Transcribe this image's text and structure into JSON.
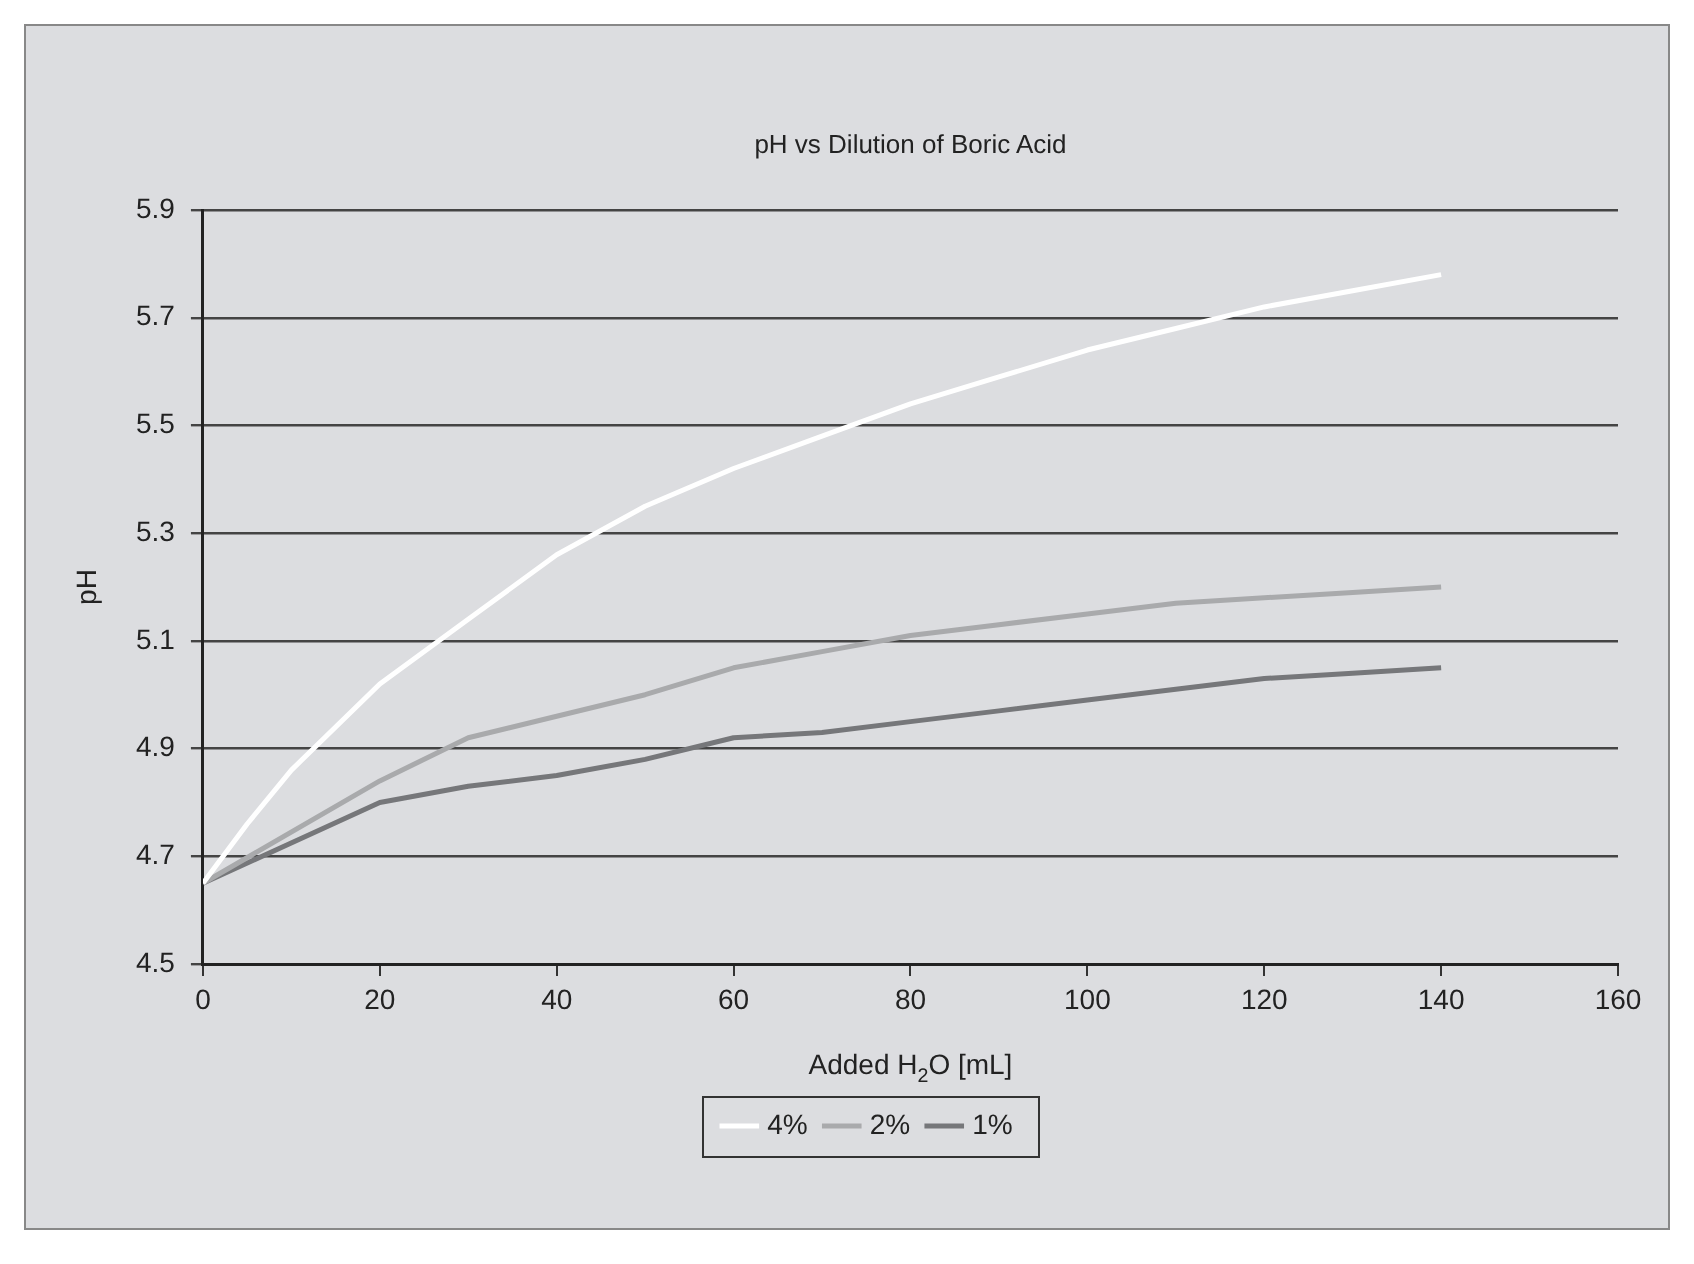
{
  "chart_data": {
    "type": "line",
    "title": "pH vs Dilution of Boric Acid",
    "xlabel": "Added H$_{2}$O [mL]",
    "ylabel": "pH",
    "xlim": [
      0,
      160
    ],
    "xticks": [
      0,
      20,
      40,
      60,
      80,
      100,
      120,
      140,
      160
    ],
    "ylim": [
      4.5,
      5.9
    ],
    "yticks": [
      4.5,
      4.7,
      4.9,
      5.1,
      5.3,
      5.5,
      5.7,
      5.9
    ],
    "grid": "y",
    "legend": "bottom",
    "marker": "none",
    "line_style": "solid",
    "series": [
      {
        "name": "4%",
        "color": "#ffffff",
        "x": [
          0,
          5,
          10,
          20,
          30,
          40,
          50,
          60,
          70,
          80,
          90,
          100,
          110,
          120,
          130,
          140
        ],
        "values": [
          4.65,
          4.76,
          4.86,
          5.02,
          5.14,
          5.26,
          5.35,
          5.42,
          5.48,
          5.54,
          5.59,
          5.64,
          5.68,
          5.72,
          5.75,
          5.78
        ]
      },
      {
        "name": "2%",
        "color": "#a9aaac",
        "x": [
          0,
          20,
          30,
          40,
          50,
          60,
          70,
          80,
          90,
          100,
          110,
          120,
          130,
          140
        ],
        "values": [
          4.65,
          4.84,
          4.92,
          4.96,
          5.0,
          5.05,
          5.08,
          5.11,
          5.13,
          5.15,
          5.17,
          5.18,
          5.19,
          5.2
        ]
      },
      {
        "name": "1%",
        "color": "#76777a",
        "x": [
          0,
          20,
          30,
          40,
          50,
          60,
          70,
          80,
          90,
          100,
          110,
          120,
          130,
          140
        ],
        "values": [
          4.65,
          4.8,
          4.83,
          4.85,
          4.88,
          4.92,
          4.93,
          4.95,
          4.97,
          4.99,
          5.01,
          5.03,
          5.04,
          5.05
        ]
      }
    ]
  }
}
